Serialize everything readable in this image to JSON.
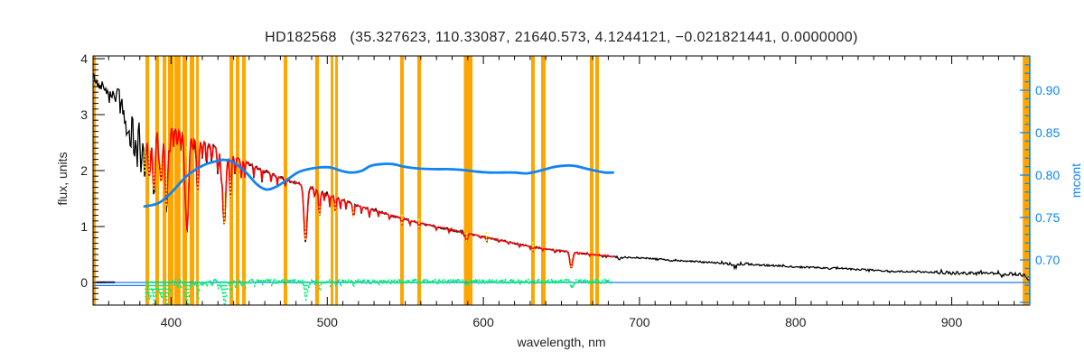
{
  "figure": {
    "title": "HD182568   (35.327623, 110.33087, 21640.573, 4.1244121, −0.021821441, 0.0000000)",
    "background": "#ffffff"
  },
  "colors": {
    "spectrum": "#000000",
    "continuum_fit": "#fe0000",
    "masked_marks": "#ffff00",
    "residual": "#00ee76",
    "mcont_curve": "#0f85f2",
    "right_axis": "#0f85f2",
    "zero_line": "#1d79e8",
    "zero_line_dark": "#0b1e6e",
    "bands": "#ffa500",
    "frame": "#000000",
    "text": "#222222"
  },
  "chart_data": {
    "type": "line",
    "title": "HD182568   (35.327623, 110.33087, 21640.573, 4.1244121, −0.021821441, 0.0000000)",
    "xlabel": "wavelength, nm",
    "ylabel_left": "flux, units",
    "ylabel_right": "mcont",
    "x_range": [
      350,
      950
    ],
    "y_left_range": [
      -0.4,
      4.05
    ],
    "y_right_range": [
      0.647,
      0.94
    ],
    "x_major_ticks": [
      400,
      500,
      600,
      700,
      800,
      900
    ],
    "x_tick_labels": [
      "400",
      "500",
      "600",
      "700",
      "800",
      "900"
    ],
    "x_minor_step": 10,
    "y_left_major_ticks": [
      0,
      1,
      2,
      3,
      4
    ],
    "y_left_tick_labels": [
      "0",
      "1",
      "2",
      "3",
      "4"
    ],
    "y_left_minor_step": 0.1,
    "y_right_major_ticks": [
      0.7,
      0.75,
      0.8,
      0.85,
      0.9
    ],
    "y_right_tick_labels": [
      "0.70",
      "0.75",
      "0.80",
      "0.85",
      "0.90"
    ],
    "y_right_minor_step": 0.01,
    "grid": false,
    "legend": false,
    "series": [
      {
        "name": "spectrum",
        "axis": "left",
        "color": "#000000",
        "points": [
          [
            350,
            3.72
          ],
          [
            352,
            3.58
          ],
          [
            354,
            3.5
          ],
          [
            356,
            3.52
          ],
          [
            358,
            3.46
          ],
          [
            360,
            3.42
          ],
          [
            363,
            3.36
          ],
          [
            366,
            3.3
          ],
          [
            369,
            3.24
          ],
          [
            372,
            3.18
          ],
          [
            375,
            3.12
          ],
          [
            378,
            3.06
          ],
          [
            381,
            3.01
          ],
          [
            384,
            2.97
          ],
          [
            387,
            2.92
          ],
          [
            390,
            2.88
          ],
          [
            394,
            2.83
          ],
          [
            398,
            2.79
          ],
          [
            402,
            2.76
          ],
          [
            406,
            2.71
          ],
          [
            410,
            2.66
          ],
          [
            415,
            2.59
          ],
          [
            420,
            2.53
          ],
          [
            425,
            2.46
          ],
          [
            430,
            2.4
          ],
          [
            435,
            2.33
          ],
          [
            440,
            2.26
          ],
          [
            445,
            2.19
          ],
          [
            450,
            2.12
          ],
          [
            455,
            2.05
          ],
          [
            460,
            1.99
          ],
          [
            465,
            1.93
          ],
          [
            470,
            1.87
          ],
          [
            475,
            1.82
          ],
          [
            480,
            1.78
          ],
          [
            486,
            1.73
          ],
          [
            490,
            1.69
          ],
          [
            495,
            1.63
          ],
          [
            500,
            1.57
          ],
          [
            505,
            1.52
          ],
          [
            510,
            1.47
          ],
          [
            515,
            1.42
          ],
          [
            520,
            1.37
          ],
          [
            525,
            1.33
          ],
          [
            530,
            1.29
          ],
          [
            535,
            1.25
          ],
          [
            540,
            1.21
          ],
          [
            545,
            1.17
          ],
          [
            550,
            1.13
          ],
          [
            555,
            1.09
          ],
          [
            560,
            1.06
          ],
          [
            565,
            1.03
          ],
          [
            570,
            1.0
          ],
          [
            575,
            0.97
          ],
          [
            580,
            0.94
          ],
          [
            585,
            0.91
          ],
          [
            590,
            0.88
          ],
          [
            595,
            0.85
          ],
          [
            600,
            0.82
          ],
          [
            605,
            0.79
          ],
          [
            610,
            0.76
          ],
          [
            615,
            0.73
          ],
          [
            620,
            0.7
          ],
          [
            625,
            0.67
          ],
          [
            630,
            0.645
          ],
          [
            635,
            0.62
          ],
          [
            640,
            0.6
          ],
          [
            645,
            0.58
          ],
          [
            650,
            0.565
          ],
          [
            655,
            0.55
          ],
          [
            660,
            0.535
          ],
          [
            665,
            0.52
          ],
          [
            670,
            0.5
          ],
          [
            675,
            0.485
          ],
          [
            680,
            0.47
          ],
          [
            685,
            0.455
          ],
          [
            690,
            0.45
          ],
          [
            700,
            0.44
          ],
          [
            710,
            0.42
          ],
          [
            720,
            0.405
          ],
          [
            730,
            0.385
          ],
          [
            740,
            0.365
          ],
          [
            750,
            0.35
          ],
          [
            760,
            0.34
          ],
          [
            770,
            0.325
          ],
          [
            780,
            0.31
          ],
          [
            790,
            0.295
          ],
          [
            800,
            0.28
          ],
          [
            810,
            0.27
          ],
          [
            820,
            0.26
          ],
          [
            830,
            0.25
          ],
          [
            840,
            0.23
          ],
          [
            850,
            0.22
          ],
          [
            860,
            0.205
          ],
          [
            870,
            0.195
          ],
          [
            880,
            0.19
          ],
          [
            890,
            0.182
          ],
          [
            900,
            0.175
          ],
          [
            910,
            0.168
          ],
          [
            920,
            0.162
          ],
          [
            930,
            0.158
          ],
          [
            938,
            0.152
          ],
          [
            944,
            0.15
          ],
          [
            947,
            0.12
          ],
          [
            949,
            0.06
          ],
          [
            950,
            0.03
          ]
        ],
        "noise_profile": [
          [
            350,
            358,
            0.06
          ],
          [
            358,
            365,
            0.12
          ],
          [
            365,
            371,
            0.18
          ],
          [
            371,
            378,
            0.28
          ],
          [
            378,
            383,
            0.22
          ],
          [
            383,
            420,
            0.1
          ],
          [
            420,
            450,
            0.045
          ],
          [
            450,
            500,
            0.03
          ],
          [
            500,
            600,
            0.022
          ],
          [
            600,
            680,
            0.018
          ],
          [
            680,
            750,
            0.015
          ],
          [
            750,
            770,
            0.03
          ],
          [
            770,
            890,
            0.015
          ],
          [
            890,
            950,
            0.028
          ]
        ],
        "absorption_lines": [
          [
            370.2,
            0.45,
            0.6
          ],
          [
            372.1,
            0.55,
            0.6
          ],
          [
            374.0,
            0.65,
            0.6
          ],
          [
            376.2,
            0.75,
            0.7
          ],
          [
            378.1,
            0.85,
            0.7
          ],
          [
            380.6,
            0.92,
            0.7
          ],
          [
            383.2,
            1.05,
            0.8
          ],
          [
            386.0,
            1.12,
            0.8
          ],
          [
            389.0,
            1.3,
            0.9
          ],
          [
            392.0,
            0.5,
            0.5
          ],
          [
            393.6,
            1.1,
            0.8
          ],
          [
            397.0,
            1.5,
            0.9
          ],
          [
            399.2,
            0.4,
            0.4
          ],
          [
            401.5,
            0.35,
            0.4
          ],
          [
            404.0,
            0.32,
            0.4
          ],
          [
            406.3,
            0.3,
            0.4
          ],
          [
            408.6,
            0.42,
            0.5
          ],
          [
            410.2,
            1.8,
            1.0
          ],
          [
            414.0,
            0.28,
            0.4
          ],
          [
            417.0,
            1.0,
            0.7
          ],
          [
            420.0,
            0.3,
            0.4
          ],
          [
            422.7,
            0.38,
            0.4
          ],
          [
            426.0,
            0.3,
            0.4
          ],
          [
            430.0,
            0.45,
            0.5
          ],
          [
            432.0,
            0.32,
            0.4
          ],
          [
            434.0,
            1.35,
            1.0
          ],
          [
            438.0,
            0.8,
            0.6
          ],
          [
            441.0,
            0.32,
            0.4
          ],
          [
            445.0,
            0.35,
            0.4
          ],
          [
            447.2,
            0.3,
            0.3
          ],
          [
            453.0,
            0.2,
            0.3
          ],
          [
            458.2,
            0.2,
            0.3
          ],
          [
            464.0,
            0.15,
            0.3
          ],
          [
            468.0,
            0.15,
            0.3
          ],
          [
            473.0,
            0.15,
            0.3
          ],
          [
            486.1,
            1.02,
            1.0
          ],
          [
            492.0,
            0.18,
            0.3
          ],
          [
            495.0,
            0.45,
            0.5
          ],
          [
            498.0,
            0.15,
            0.3
          ],
          [
            501.6,
            0.2,
            0.3
          ],
          [
            505.2,
            0.28,
            0.4
          ],
          [
            508.4,
            0.2,
            0.3
          ],
          [
            512.0,
            0.15,
            0.3
          ],
          [
            516.8,
            0.24,
            0.5
          ],
          [
            522.0,
            0.12,
            0.3
          ],
          [
            527.0,
            0.15,
            0.4
          ],
          [
            532.8,
            0.1,
            0.3
          ],
          [
            540.0,
            0.1,
            0.3
          ],
          [
            547.8,
            0.1,
            0.4
          ],
          [
            553.0,
            0.08,
            0.3
          ],
          [
            558.8,
            0.09,
            0.4
          ],
          [
            570.0,
            0.07,
            0.3
          ],
          [
            578.0,
            0.06,
            0.3
          ],
          [
            587.6,
            0.08,
            0.3
          ],
          [
            589.3,
            0.16,
            0.6
          ],
          [
            598.0,
            0.05,
            0.3
          ],
          [
            602.0,
            0.07,
            0.4
          ],
          [
            610.0,
            0.05,
            0.3
          ],
          [
            616.0,
            0.04,
            0.3
          ],
          [
            623.0,
            0.05,
            0.3
          ],
          [
            630.0,
            0.05,
            0.3
          ],
          [
            631.7,
            0.07,
            0.4
          ],
          [
            638.0,
            0.04,
            0.3
          ],
          [
            646.0,
            0.05,
            0.3
          ],
          [
            656.3,
            0.29,
            0.9
          ],
          [
            661.0,
            0.04,
            0.3
          ],
          [
            668.0,
            0.04,
            0.3
          ],
          [
            687.0,
            0.05,
            0.5
          ],
          [
            719.0,
            0.03,
            0.4
          ],
          [
            761.0,
            0.06,
            1.5
          ],
          [
            822.0,
            0.02,
            0.4
          ],
          [
            860.0,
            0.02,
            0.5
          ],
          [
            900.0,
            0.025,
            0.8
          ],
          [
            932.0,
            0.03,
            1.0
          ]
        ]
      },
      {
        "name": "continuum_fit",
        "axis": "left",
        "color": "#fe0000",
        "x_start": 383,
        "x_end": 684,
        "follows": "spectrum_smooth"
      },
      {
        "name": "masked_marks",
        "color": "#ffff00",
        "marks_nm": [
          383.2,
          386.0,
          389.0,
          393.6,
          397.0,
          410.2,
          417.0,
          434.0,
          438.0,
          486.1,
          495.0,
          505.2,
          516.8,
          547.8,
          558.8,
          589.3,
          602.0,
          631.7,
          656.3
        ]
      },
      {
        "name": "residual",
        "axis": "left",
        "color": "#00ee76",
        "x_start": 383,
        "x_end": 682,
        "baseline": 0.02,
        "noise": 0.03,
        "dip_scale": 0.3
      },
      {
        "name": "mcont",
        "axis": "right",
        "color": "#0f85f2",
        "points": [
          [
            383,
            0.763
          ],
          [
            392,
            0.767
          ],
          [
            400,
            0.779
          ],
          [
            410,
            0.799
          ],
          [
            420,
            0.811
          ],
          [
            428,
            0.816
          ],
          [
            434,
            0.818
          ],
          [
            440,
            0.815
          ],
          [
            448,
            0.803
          ],
          [
            455,
            0.789
          ],
          [
            461,
            0.783
          ],
          [
            467,
            0.786
          ],
          [
            474,
            0.794
          ],
          [
            481,
            0.803
          ],
          [
            488,
            0.807
          ],
          [
            495,
            0.809
          ],
          [
            502,
            0.809
          ],
          [
            509,
            0.805
          ],
          [
            515,
            0.803
          ],
          [
            522,
            0.805
          ],
          [
            528,
            0.811
          ],
          [
            535,
            0.813
          ],
          [
            542,
            0.813
          ],
          [
            549,
            0.81
          ],
          [
            557,
            0.808
          ],
          [
            567,
            0.807
          ],
          [
            577,
            0.807
          ],
          [
            587,
            0.806
          ],
          [
            596,
            0.804
          ],
          [
            604,
            0.803
          ],
          [
            612,
            0.803
          ],
          [
            620,
            0.803
          ],
          [
            628,
            0.802
          ],
          [
            636,
            0.805
          ],
          [
            644,
            0.809
          ],
          [
            651,
            0.811
          ],
          [
            658,
            0.811
          ],
          [
            665,
            0.808
          ],
          [
            672,
            0.805
          ],
          [
            678,
            0.803
          ],
          [
            683,
            0.803
          ]
        ]
      },
      {
        "name": "zero_line",
        "axis": "left",
        "color": "#1d79e8",
        "y": 0.0,
        "x_start": 350,
        "x_end": 950
      },
      {
        "name": "zero_line_short",
        "axis": "left",
        "color": "#1d79e8",
        "y": -0.055,
        "x_start": 350,
        "x_end": 384
      },
      {
        "name": "zero_line_dark_segment",
        "axis": "left",
        "color": "#0b1e6e",
        "y": 0.005,
        "x_start": 352,
        "x_end": 364
      }
    ],
    "orange_bands_nm": [
      [
        350.0,
        351.8
      ],
      [
        383.6,
        385.9
      ],
      [
        389.9,
        392.2
      ],
      [
        394.6,
        396.9
      ],
      [
        398.0,
        401.5
      ],
      [
        402.1,
        406.1
      ],
      [
        407.3,
        410.2
      ],
      [
        411.9,
        414.8
      ],
      [
        416.0,
        417.7
      ],
      [
        437.4,
        439.7
      ],
      [
        441.4,
        443.7
      ],
      [
        445.5,
        447.8
      ],
      [
        472.1,
        474.4
      ],
      [
        492.3,
        494.7
      ],
      [
        502.2,
        503.9
      ],
      [
        505.1,
        506.8
      ],
      [
        546.7,
        549.0
      ],
      [
        557.7,
        560.0
      ],
      [
        587.5,
        593.0
      ],
      [
        630.6,
        632.9
      ],
      [
        637.0,
        639.9
      ],
      [
        668.2,
        670.5
      ],
      [
        671.7,
        674.0
      ],
      [
        945.5,
        950.0
      ]
    ]
  }
}
